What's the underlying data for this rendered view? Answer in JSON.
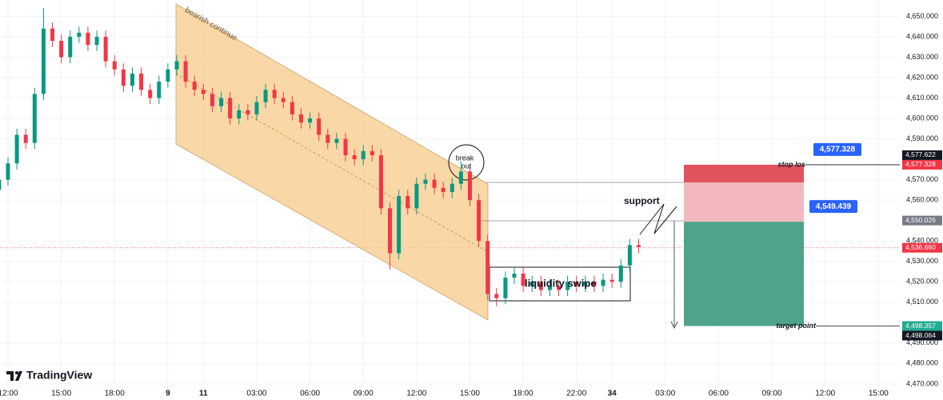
{
  "chart_data": {
    "type": "candlestick",
    "x": [
      -0.5,
      0,
      0.5,
      1,
      1.5,
      2,
      2.5,
      3,
      3.5,
      4,
      4.5,
      5,
      5.5,
      6,
      6.5,
      7,
      7.5,
      8,
      8.5,
      9,
      9.5,
      10,
      10.5,
      11,
      11.5,
      12,
      12.5,
      13,
      13.5,
      14,
      14.5,
      15,
      15.5,
      16,
      16.5,
      17,
      17.5,
      18,
      18.5,
      19,
      19.5,
      20,
      20.5,
      21,
      21.5,
      22,
      22.5,
      23,
      23.5,
      24,
      24.5,
      25,
      25.5,
      26,
      26.5,
      27,
      27.5,
      28,
      28.5,
      29,
      29.5,
      30,
      30.5,
      31,
      31.5,
      32,
      32.5,
      33,
      33.5,
      34,
      34.5,
      35,
      35.5
    ],
    "open": [
      4565,
      4570,
      4578,
      4592,
      4588,
      4612,
      4644,
      4638,
      4630,
      4640,
      4642,
      4636,
      4640,
      4628,
      4624,
      4616,
      4622,
      4614,
      4610,
      4618,
      4624,
      4628,
      4618,
      4614,
      4612,
      4606,
      4610,
      4600,
      4604,
      4602,
      4608,
      4614,
      4610,
      4608,
      4602,
      4598,
      4600,
      4592,
      4588,
      4590,
      4582,
      4580,
      4584,
      4582,
      4556,
      4534,
      4562,
      4556,
      4568,
      4570,
      4566,
      4564,
      4568,
      4574,
      4560,
      4540,
      4514,
      4512,
      4522,
      4524,
      4518,
      4520,
      4516,
      4518,
      4516,
      4520,
      4518,
      4520,
      4518,
      4521,
      4520,
      4528,
      4538
    ],
    "high": [
      4573,
      4581,
      4595,
      4595,
      4615,
      4654,
      4647,
      4641,
      4643,
      4645,
      4645,
      4643,
      4643,
      4631,
      4627,
      4625,
      4625,
      4617,
      4621,
      4627,
      4631,
      4631,
      4621,
      4617,
      4615,
      4613,
      4613,
      4607,
      4607,
      4611,
      4617,
      4617,
      4613,
      4611,
      4605,
      4603,
      4603,
      4595,
      4593,
      4593,
      4585,
      4587,
      4587,
      4585,
      4559,
      4565,
      4565,
      4571,
      4573,
      4573,
      4569,
      4571,
      4579,
      4577,
      4563,
      4543,
      4517,
      4525,
      4527,
      4527,
      4523,
      4523,
      4521,
      4521,
      4523,
      4523,
      4523,
      4523,
      4524,
      4524,
      4531,
      4541,
      4541
    ],
    "low": [
      4562,
      4567,
      4575,
      4585,
      4585,
      4609,
      4635,
      4627,
      4627,
      4637,
      4633,
      4633,
      4625,
      4621,
      4613,
      4613,
      4611,
      4607,
      4607,
      4615,
      4621,
      4615,
      4611,
      4609,
      4603,
      4603,
      4597,
      4597,
      4599,
      4599,
      4605,
      4607,
      4605,
      4599,
      4595,
      4595,
      4589,
      4585,
      4585,
      4579,
      4577,
      4577,
      4579,
      4553,
      4526,
      4531,
      4553,
      4553,
      4565,
      4563,
      4561,
      4561,
      4565,
      4557,
      4537,
      4511,
      4508,
      4509,
      4519,
      4515,
      4515,
      4513,
      4513,
      4513,
      4513,
      4515,
      4515,
      4515,
      4515,
      4517,
      4517,
      4525,
      4534
    ],
    "close": [
      4570,
      4578,
      4592,
      4588,
      4612,
      4644,
      4638,
      4630,
      4640,
      4642,
      4636,
      4640,
      4628,
      4624,
      4616,
      4622,
      4614,
      4610,
      4618,
      4624,
      4628,
      4618,
      4614,
      4612,
      4606,
      4610,
      4600,
      4604,
      4602,
      4608,
      4614,
      4610,
      4608,
      4602,
      4598,
      4600,
      4592,
      4588,
      4590,
      4582,
      4580,
      4584,
      4582,
      4556,
      4534,
      4562,
      4556,
      4568,
      4570,
      4566,
      4564,
      4568,
      4574,
      4560,
      4540,
      4514,
      4512,
      4522,
      4524,
      4518,
      4520,
      4516,
      4518,
      4516,
      4520,
      4518,
      4520,
      4518,
      4521,
      4520,
      4528,
      4538,
      4537
    ],
    "up_color": "#089981",
    "down_color": "#f23645",
    "xlim": [
      -0.45,
      50.2
    ],
    "xticks": [
      {
        "value": 0,
        "label": "12:00"
      },
      {
        "value": 3,
        "label": "15:00"
      },
      {
        "value": 6,
        "label": "18:00"
      },
      9,
      11,
      {
        "value": 14,
        "label": "03:00"
      },
      {
        "value": 17,
        "label": "06:00"
      },
      {
        "value": 20,
        "label": "09:00"
      },
      {
        "value": 23,
        "label": "12:00"
      },
      {
        "value": 26,
        "label": "15:00"
      },
      {
        "value": 29,
        "label": "18:00"
      },
      {
        "value": 32,
        "label": "22:00"
      },
      34,
      {
        "value": 37,
        "label": "03:00"
      },
      {
        "value": 40,
        "label": "06:00"
      },
      {
        "value": 43,
        "label": "09:00"
      },
      {
        "value": 46,
        "label": "12:00"
      },
      {
        "value": 49,
        "label": "15:00"
      }
    ],
    "ylim": [
      4468,
      4658
    ],
    "yticks": [
      {
        "value": 4470,
        "label": "4,470.000"
      },
      {
        "value": 4480,
        "label": "4,480.000"
      },
      {
        "value": 4490,
        "label": "4,490.000"
      },
      {
        "value": 4510,
        "label": "4,510.000"
      },
      {
        "value": 4520,
        "label": "4,520.000"
      },
      {
        "value": 4530,
        "label": "4,530.000"
      },
      {
        "value": 4540,
        "label": "4,540.000"
      },
      {
        "value": 4560,
        "label": "4,560.000"
      },
      {
        "value": 4570,
        "label": "4,570.000"
      },
      {
        "value": 4590,
        "label": "4,590.000"
      },
      {
        "value": 4600,
        "label": "4,600.000"
      },
      {
        "value": 4610,
        "label": "4,610.000"
      },
      {
        "value": 4620,
        "label": "4,620.000"
      },
      {
        "value": 4630,
        "label": "4,630.000"
      },
      {
        "value": 4640,
        "label": "4,640.000"
      },
      {
        "value": 4650,
        "label": "4,650.000"
      }
    ],
    "last_price": {
      "value": 4536.66,
      "label": "4,536.660",
      "color": "#f23645"
    },
    "price_labels": [
      {
        "value": 4577.328,
        "label": "4,577.328",
        "color": "#f23645"
      },
      {
        "value": 4577.622,
        "label": "4,577.622",
        "color": "#131722"
      },
      {
        "value": 4550.026,
        "label": "4,550.026",
        "color": "#787b86"
      },
      {
        "value": 4498.357,
        "label": "4,498.357",
        "color": "#22ab94"
      },
      {
        "value": 4498.064,
        "label": "4,498.064",
        "color": "#131722"
      }
    ],
    "position": {
      "stop": 4577.328,
      "stop_label": "4,577.328",
      "entry": 4549.439,
      "entry_label": "4,549.439",
      "target": 4498.357
    },
    "annotations": {
      "channel": "bearish continue",
      "breakout": [
        "break",
        "out"
      ],
      "support": "support",
      "range": "liquidity swipe",
      "stop": "stop los-",
      "target": "target point"
    },
    "branding": "TradingView"
  }
}
